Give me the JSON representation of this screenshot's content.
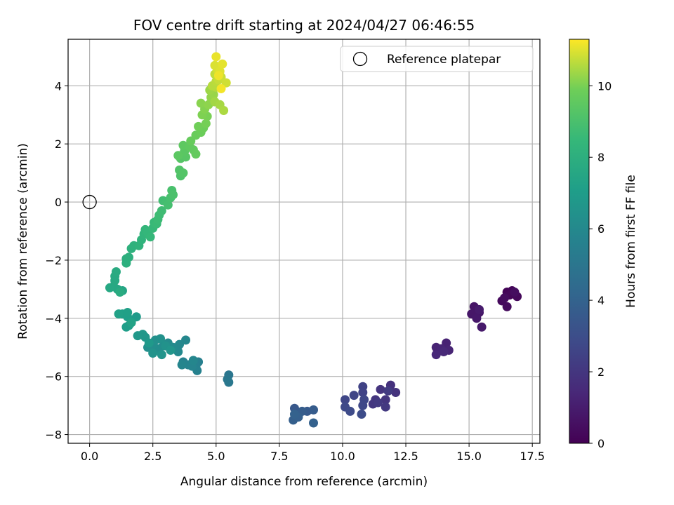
{
  "chart_data": {
    "type": "scatter",
    "title": "FOV centre drift starting at 2024/04/27 06:46:55",
    "xlabel": "Angular distance from reference (arcmin)",
    "ylabel": "Rotation from reference (arcmin)",
    "xlim": [
      -0.85,
      17.8
    ],
    "ylim": [
      -8.3,
      5.6
    ],
    "xticks": [
      "0.0",
      "2.5",
      "5.0",
      "7.5",
      "10.0",
      "12.5",
      "15.0",
      "17.5"
    ],
    "xtick_values": [
      0,
      2.5,
      5,
      7.5,
      10,
      12.5,
      15,
      17.5
    ],
    "yticks": [
      "−8",
      "−6",
      "−4",
      "−2",
      "0",
      "2",
      "4"
    ],
    "ytick_values": [
      -8,
      -6,
      -4,
      -2,
      0,
      2,
      4
    ],
    "grid": true,
    "colormap": "viridis",
    "colorbar": {
      "label": "Hours from first FF file",
      "range": [
        0,
        11.3
      ],
      "ticks": [
        "0",
        "2",
        "4",
        "6",
        "8",
        "10"
      ],
      "tick_values": [
        0,
        2,
        4,
        6,
        8,
        10
      ]
    },
    "legend": {
      "position": "top-right",
      "entries": [
        "Reference platepar"
      ]
    },
    "reference_point": {
      "x": 0.0,
      "y": 0.0
    },
    "points": [
      {
        "x": 16.5,
        "y": -3.1,
        "h": 0.1
      },
      {
        "x": 16.7,
        "y": -3.05,
        "h": 0.15
      },
      {
        "x": 16.6,
        "y": -3.2,
        "h": 0.2
      },
      {
        "x": 16.9,
        "y": -3.25,
        "h": 0.25
      },
      {
        "x": 16.3,
        "y": -3.4,
        "h": 0.3
      },
      {
        "x": 16.5,
        "y": -3.6,
        "h": 0.35
      },
      {
        "x": 16.4,
        "y": -3.3,
        "h": 0.4
      },
      {
        "x": 16.8,
        "y": -3.1,
        "h": 0.45
      },
      {
        "x": 15.2,
        "y": -3.6,
        "h": 0.7
      },
      {
        "x": 15.4,
        "y": -3.8,
        "h": 0.75
      },
      {
        "x": 15.1,
        "y": -3.85,
        "h": 0.8
      },
      {
        "x": 15.3,
        "y": -4.0,
        "h": 0.85
      },
      {
        "x": 15.5,
        "y": -4.3,
        "h": 0.9
      },
      {
        "x": 15.4,
        "y": -3.7,
        "h": 0.95
      },
      {
        "x": 14.1,
        "y": -4.85,
        "h": 1.2
      },
      {
        "x": 13.7,
        "y": -5.0,
        "h": 1.25
      },
      {
        "x": 14.2,
        "y": -5.1,
        "h": 1.3
      },
      {
        "x": 13.9,
        "y": -5.05,
        "h": 1.35
      },
      {
        "x": 13.7,
        "y": -5.25,
        "h": 1.4
      },
      {
        "x": 14.0,
        "y": -5.15,
        "h": 1.45
      },
      {
        "x": 11.9,
        "y": -6.3,
        "h": 1.8
      },
      {
        "x": 12.1,
        "y": -6.55,
        "h": 1.85
      },
      {
        "x": 11.5,
        "y": -6.45,
        "h": 1.9
      },
      {
        "x": 11.7,
        "y": -6.8,
        "h": 1.95
      },
      {
        "x": 11.3,
        "y": -6.8,
        "h": 2.0
      },
      {
        "x": 11.2,
        "y": -6.95,
        "h": 2.05
      },
      {
        "x": 11.7,
        "y": -7.05,
        "h": 2.1
      },
      {
        "x": 11.4,
        "y": -6.9,
        "h": 2.15
      },
      {
        "x": 11.8,
        "y": -6.5,
        "h": 2.2
      },
      {
        "x": 10.8,
        "y": -6.35,
        "h": 2.5
      },
      {
        "x": 10.8,
        "y": -6.55,
        "h": 2.55
      },
      {
        "x": 10.45,
        "y": -6.65,
        "h": 2.6
      },
      {
        "x": 10.1,
        "y": -6.8,
        "h": 2.65
      },
      {
        "x": 10.85,
        "y": -6.8,
        "h": 2.7
      },
      {
        "x": 10.8,
        "y": -7.0,
        "h": 2.75
      },
      {
        "x": 10.1,
        "y": -7.05,
        "h": 2.8
      },
      {
        "x": 10.3,
        "y": -7.2,
        "h": 2.85
      },
      {
        "x": 10.75,
        "y": -7.3,
        "h": 2.9
      },
      {
        "x": 8.1,
        "y": -7.1,
        "h": 3.5
      },
      {
        "x": 8.3,
        "y": -7.25,
        "h": 3.55
      },
      {
        "x": 8.6,
        "y": -7.2,
        "h": 3.6
      },
      {
        "x": 8.85,
        "y": -7.15,
        "h": 3.65
      },
      {
        "x": 8.4,
        "y": -7.2,
        "h": 3.7
      },
      {
        "x": 8.2,
        "y": -7.35,
        "h": 3.75
      },
      {
        "x": 8.05,
        "y": -7.5,
        "h": 3.8
      },
      {
        "x": 8.25,
        "y": -7.4,
        "h": 3.85
      },
      {
        "x": 8.85,
        "y": -7.6,
        "h": 3.9
      },
      {
        "x": 8.1,
        "y": -7.3,
        "h": 3.95
      },
      {
        "x": 5.5,
        "y": -5.95,
        "h": 5.0
      },
      {
        "x": 5.45,
        "y": -6.1,
        "h": 5.05
      },
      {
        "x": 5.5,
        "y": -6.2,
        "h": 5.1
      },
      {
        "x": 4.3,
        "y": -5.5,
        "h": 5.5
      },
      {
        "x": 4.2,
        "y": -5.65,
        "h": 5.55
      },
      {
        "x": 4.25,
        "y": -5.8,
        "h": 5.6
      },
      {
        "x": 3.7,
        "y": -5.5,
        "h": 5.65
      },
      {
        "x": 3.9,
        "y": -5.6,
        "h": 5.7
      },
      {
        "x": 4.05,
        "y": -5.65,
        "h": 5.75
      },
      {
        "x": 3.65,
        "y": -5.6,
        "h": 5.8
      },
      {
        "x": 4.1,
        "y": -5.45,
        "h": 5.85
      },
      {
        "x": 3.8,
        "y": -4.75,
        "h": 5.9
      },
      {
        "x": 3.55,
        "y": -4.9,
        "h": 5.95
      },
      {
        "x": 3.5,
        "y": -5.15,
        "h": 6.0
      },
      {
        "x": 3.3,
        "y": -5.0,
        "h": 6.05
      },
      {
        "x": 3.1,
        "y": -4.85,
        "h": 6.1
      },
      {
        "x": 2.9,
        "y": -4.95,
        "h": 6.15
      },
      {
        "x": 2.7,
        "y": -5.05,
        "h": 6.2
      },
      {
        "x": 2.5,
        "y": -4.9,
        "h": 6.25
      },
      {
        "x": 2.3,
        "y": -5.0,
        "h": 6.3
      },
      {
        "x": 2.6,
        "y": -4.75,
        "h": 6.35
      },
      {
        "x": 2.8,
        "y": -4.7,
        "h": 6.4
      },
      {
        "x": 3.0,
        "y": -4.95,
        "h": 6.45
      },
      {
        "x": 2.5,
        "y": -5.2,
        "h": 6.5
      },
      {
        "x": 2.85,
        "y": -5.25,
        "h": 6.55
      },
      {
        "x": 3.2,
        "y": -5.1,
        "h": 6.6
      },
      {
        "x": 2.2,
        "y": -4.65,
        "h": 6.65
      },
      {
        "x": 2.1,
        "y": -4.55,
        "h": 6.7
      },
      {
        "x": 1.9,
        "y": -4.6,
        "h": 6.75
      },
      {
        "x": 2.35,
        "y": -4.85,
        "h": 6.8
      },
      {
        "x": 1.85,
        "y": -3.95,
        "h": 6.9
      },
      {
        "x": 1.65,
        "y": -4.1,
        "h": 6.95
      },
      {
        "x": 1.55,
        "y": -4.25,
        "h": 7.0
      },
      {
        "x": 1.45,
        "y": -4.3,
        "h": 7.05
      },
      {
        "x": 1.5,
        "y": -3.95,
        "h": 7.1
      },
      {
        "x": 1.3,
        "y": -3.85,
        "h": 7.15
      },
      {
        "x": 1.5,
        "y": -3.8,
        "h": 7.2
      },
      {
        "x": 1.15,
        "y": -3.85,
        "h": 7.25
      },
      {
        "x": 1.65,
        "y": -4.15,
        "h": 7.3
      },
      {
        "x": 1.3,
        "y": -3.05,
        "h": 7.45
      },
      {
        "x": 1.1,
        "y": -3.0,
        "h": 7.5
      },
      {
        "x": 0.95,
        "y": -2.9,
        "h": 7.55
      },
      {
        "x": 0.8,
        "y": -2.95,
        "h": 7.6
      },
      {
        "x": 1.0,
        "y": -2.7,
        "h": 7.65
      },
      {
        "x": 1.0,
        "y": -2.55,
        "h": 7.7
      },
      {
        "x": 1.05,
        "y": -2.4,
        "h": 7.75
      },
      {
        "x": 1.2,
        "y": -3.1,
        "h": 7.8
      },
      {
        "x": 1.45,
        "y": -1.95,
        "h": 7.95
      },
      {
        "x": 1.45,
        "y": -2.1,
        "h": 8.0
      },
      {
        "x": 1.55,
        "y": -1.9,
        "h": 8.05
      },
      {
        "x": 1.65,
        "y": -1.6,
        "h": 8.1
      },
      {
        "x": 1.75,
        "y": -1.5,
        "h": 8.15
      },
      {
        "x": 1.95,
        "y": -1.5,
        "h": 8.2
      },
      {
        "x": 2.05,
        "y": -1.3,
        "h": 8.25
      },
      {
        "x": 2.15,
        "y": -1.1,
        "h": 8.3
      },
      {
        "x": 2.2,
        "y": -0.95,
        "h": 8.35
      },
      {
        "x": 2.3,
        "y": -1.05,
        "h": 8.4
      },
      {
        "x": 2.4,
        "y": -1.2,
        "h": 8.45
      },
      {
        "x": 2.5,
        "y": -0.9,
        "h": 8.5
      },
      {
        "x": 2.55,
        "y": -0.7,
        "h": 8.55
      },
      {
        "x": 2.65,
        "y": -0.75,
        "h": 8.6
      },
      {
        "x": 2.7,
        "y": -0.6,
        "h": 8.65
      },
      {
        "x": 2.75,
        "y": -0.45,
        "h": 8.7
      },
      {
        "x": 2.85,
        "y": -0.3,
        "h": 8.75
      },
      {
        "x": 2.9,
        "y": 0.05,
        "h": 8.8
      },
      {
        "x": 3.05,
        "y": 0.0,
        "h": 8.85
      },
      {
        "x": 3.1,
        "y": -0.1,
        "h": 8.9
      },
      {
        "x": 3.2,
        "y": 0.15,
        "h": 8.95
      },
      {
        "x": 3.25,
        "y": 0.4,
        "h": 9.0
      },
      {
        "x": 3.3,
        "y": 0.25,
        "h": 9.05
      },
      {
        "x": 3.6,
        "y": 0.9,
        "h": 9.15
      },
      {
        "x": 3.55,
        "y": 1.1,
        "h": 9.2
      },
      {
        "x": 3.7,
        "y": 1.0,
        "h": 9.25
      },
      {
        "x": 3.6,
        "y": 1.5,
        "h": 9.3
      },
      {
        "x": 3.8,
        "y": 1.55,
        "h": 9.35
      },
      {
        "x": 3.75,
        "y": 1.75,
        "h": 9.4
      },
      {
        "x": 3.5,
        "y": 1.6,
        "h": 9.45
      },
      {
        "x": 3.7,
        "y": 1.95,
        "h": 9.5
      },
      {
        "x": 3.95,
        "y": 1.9,
        "h": 9.55
      },
      {
        "x": 4.1,
        "y": 1.8,
        "h": 9.6
      },
      {
        "x": 4.2,
        "y": 1.65,
        "h": 9.65
      },
      {
        "x": 4.0,
        "y": 2.1,
        "h": 9.7
      },
      {
        "x": 4.2,
        "y": 2.3,
        "h": 9.75
      },
      {
        "x": 4.4,
        "y": 2.4,
        "h": 9.8
      },
      {
        "x": 4.5,
        "y": 2.55,
        "h": 9.85
      },
      {
        "x": 4.3,
        "y": 2.6,
        "h": 9.9
      },
      {
        "x": 4.6,
        "y": 2.7,
        "h": 9.95
      },
      {
        "x": 4.65,
        "y": 2.95,
        "h": 10.0
      },
      {
        "x": 4.45,
        "y": 3.0,
        "h": 10.05
      },
      {
        "x": 4.55,
        "y": 3.2,
        "h": 10.1
      },
      {
        "x": 4.4,
        "y": 3.4,
        "h": 10.15
      },
      {
        "x": 4.7,
        "y": 3.35,
        "h": 10.2
      },
      {
        "x": 4.8,
        "y": 3.6,
        "h": 10.25
      },
      {
        "x": 4.9,
        "y": 3.7,
        "h": 10.3
      },
      {
        "x": 4.75,
        "y": 3.85,
        "h": 10.35
      },
      {
        "x": 4.95,
        "y": 3.45,
        "h": 10.4
      },
      {
        "x": 5.15,
        "y": 3.35,
        "h": 10.45
      },
      {
        "x": 5.3,
        "y": 3.15,
        "h": 10.5
      },
      {
        "x": 5.0,
        "y": 3.95,
        "h": 10.55
      },
      {
        "x": 4.85,
        "y": 4.0,
        "h": 10.6
      },
      {
        "x": 5.0,
        "y": 4.15,
        "h": 10.65
      },
      {
        "x": 4.95,
        "y": 4.4,
        "h": 10.7
      },
      {
        "x": 5.1,
        "y": 4.2,
        "h": 10.75
      },
      {
        "x": 5.2,
        "y": 4.3,
        "h": 10.8
      },
      {
        "x": 5.4,
        "y": 4.1,
        "h": 10.85
      },
      {
        "x": 5.05,
        "y": 4.55,
        "h": 10.9
      },
      {
        "x": 4.95,
        "y": 4.7,
        "h": 10.95
      },
      {
        "x": 5.15,
        "y": 4.5,
        "h": 11.0
      },
      {
        "x": 5.25,
        "y": 4.75,
        "h": 11.05
      },
      {
        "x": 5.0,
        "y": 5.0,
        "h": 11.1
      },
      {
        "x": 5.1,
        "y": 4.35,
        "h": 11.15
      },
      {
        "x": 5.2,
        "y": 3.9,
        "h": 11.2
      }
    ]
  }
}
